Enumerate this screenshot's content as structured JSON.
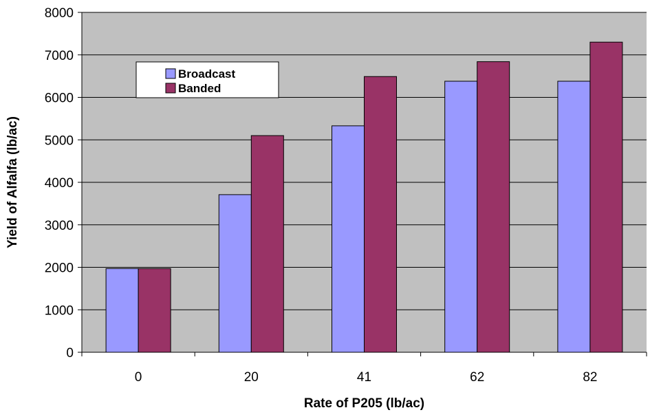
{
  "chart_data": {
    "type": "bar",
    "title": "",
    "xlabel": "Rate of P205 (lb/ac)",
    "ylabel": "Yield of Alfalfa (lb/ac)",
    "categories": [
      "0",
      "20",
      "41",
      "62",
      "82"
    ],
    "series": [
      {
        "name": "Broadcast",
        "color": "#9999ff",
        "values": [
          1970,
          3710,
          5330,
          6380,
          6380
        ]
      },
      {
        "name": "Banded",
        "color": "#993366",
        "values": [
          1970,
          5100,
          6490,
          6840,
          7300
        ]
      }
    ],
    "ylim": [
      0,
      8000
    ],
    "yticks": [
      "0",
      "1000",
      "2000",
      "3000",
      "4000",
      "5000",
      "6000",
      "7000",
      "8000"
    ],
    "grid": true,
    "plot_background": "#c0c0c0",
    "legend_position": "top-left"
  }
}
